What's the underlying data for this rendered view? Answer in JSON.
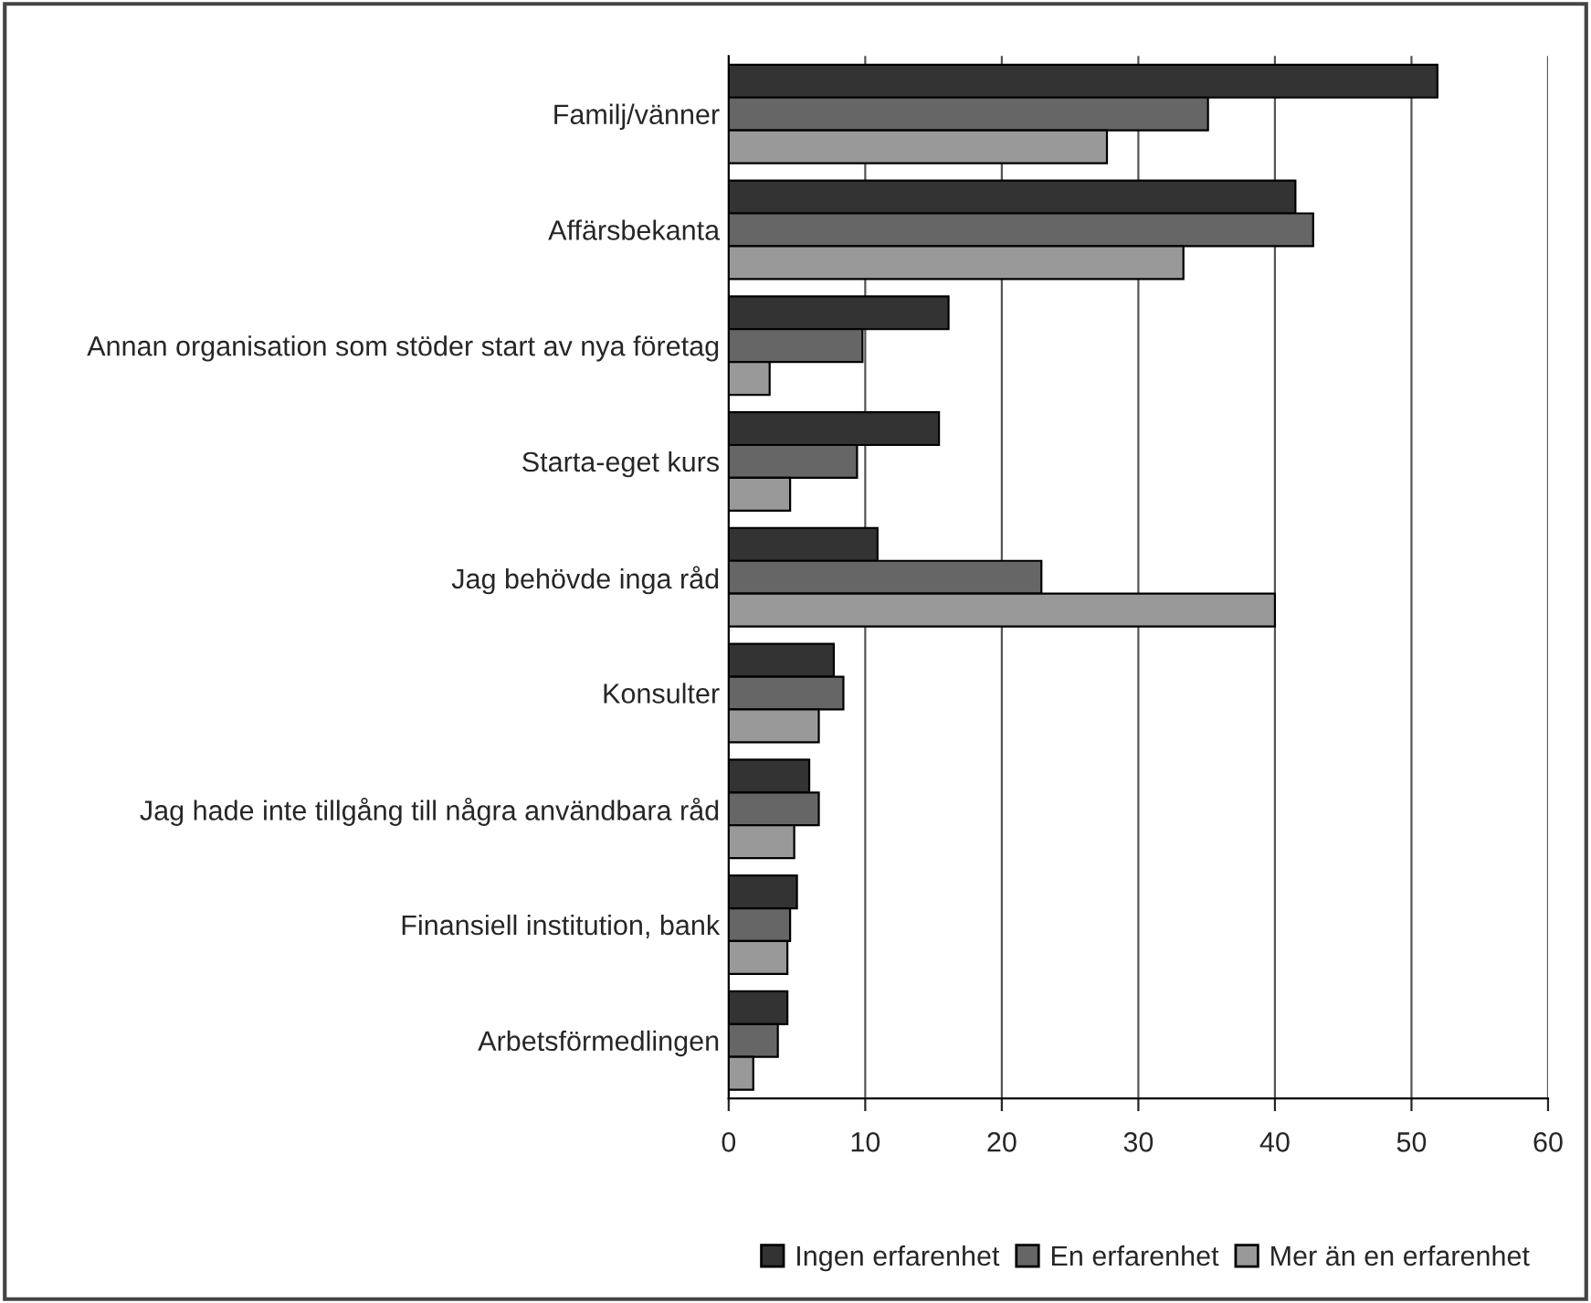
{
  "chart_data": {
    "type": "bar",
    "orientation": "horizontal",
    "categories": [
      "Familj/vänner",
      "Affärsbekanta",
      "Annan organisation som stöder start av nya företag",
      "Starta-eget kurs",
      "Jag behövde inga råd",
      "Konsulter",
      "Jag hade inte tillgång till några användbara råd",
      "Finansiell institution, bank",
      "Arbetsförmedlingen"
    ],
    "series": [
      {
        "name": "Ingen erfarenhet",
        "color": "#333333",
        "values": [
          51.9,
          41.5,
          16.1,
          15.4,
          10.9,
          7.7,
          5.9,
          5.0,
          4.3
        ]
      },
      {
        "name": "En erfarenhet",
        "color": "#666666",
        "values": [
          35.1,
          42.8,
          9.8,
          9.4,
          22.9,
          8.4,
          6.6,
          4.5,
          3.6
        ]
      },
      {
        "name": "Mer än en erfarenhet",
        "color": "#999999",
        "values": [
          27.7,
          33.3,
          3.0,
          4.5,
          40.0,
          6.6,
          4.8,
          4.3,
          1.8
        ]
      }
    ],
    "xlim": [
      0,
      60
    ],
    "xticks": [
      0,
      10,
      20,
      30,
      40,
      50,
      60
    ],
    "grid": "x",
    "legend": "bottom"
  }
}
